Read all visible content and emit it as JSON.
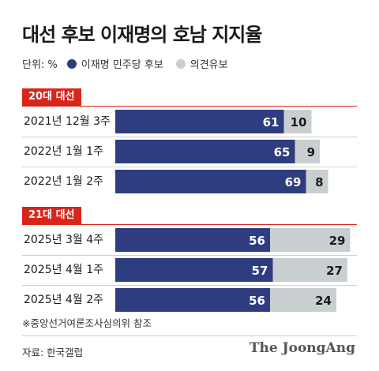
{
  "chart_data": {
    "type": "bar",
    "orientation": "horizontal",
    "stacked": true,
    "title": "대선 후보 이재명의 호남 지지율",
    "unit_label": "단위: %",
    "legend": [
      {
        "name": "이재명 민주당 후보",
        "color": "#2e3d7f"
      },
      {
        "name": "의견유보",
        "color": "#c9ced1"
      }
    ],
    "xlim": [
      0,
      100
    ],
    "groups": [
      {
        "label": "20대 대선",
        "rows": [
          {
            "category": "2021년 12월 3주",
            "values": [
              61,
              10
            ]
          },
          {
            "category": "2022년 1월 1주",
            "values": [
              65,
              9
            ]
          },
          {
            "category": "2022년 1월 2주",
            "values": [
              69,
              8
            ]
          }
        ]
      },
      {
        "label": "21대 대선",
        "rows": [
          {
            "category": "2025년 3월 4주",
            "values": [
              56,
              29
            ]
          },
          {
            "category": "2025년 4월 1주",
            "values": [
              57,
              27
            ]
          },
          {
            "category": "2025년 4월 2주",
            "values": [
              56,
              24
            ]
          }
        ]
      }
    ],
    "note": "※중앙선거여론조사심의위 참조",
    "source": "자료: 한국갤럽"
  },
  "brand": "The JoongAng"
}
